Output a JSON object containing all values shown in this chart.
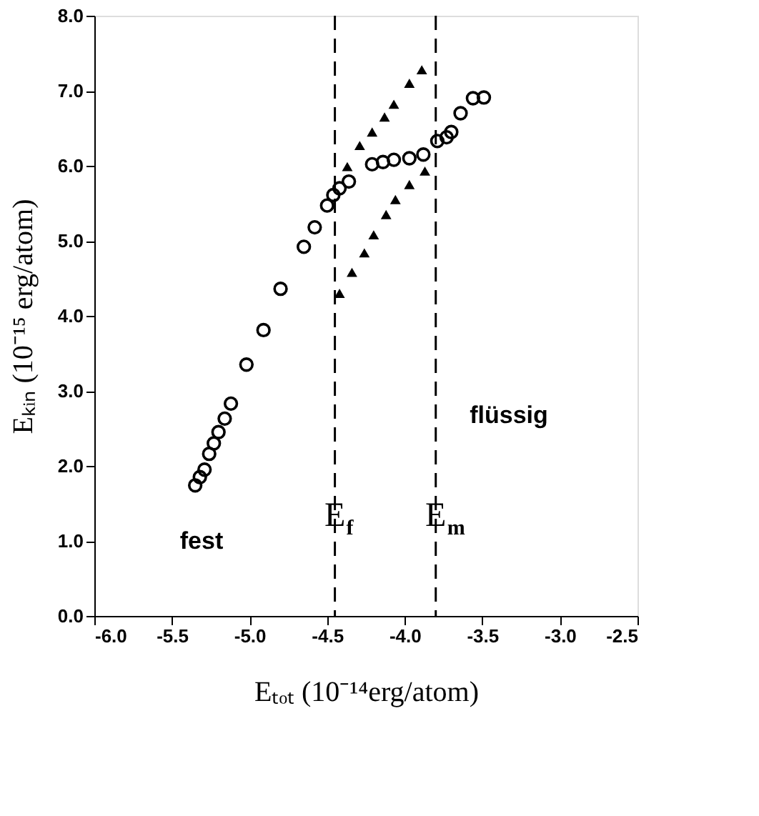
{
  "chart_data": {
    "type": "scatter",
    "xlabel": "Eₜₒₜ (10⁻¹⁴erg/atom)",
    "ylabel": "Eₖᵢₙ (10⁻¹⁵ erg/atom)",
    "xlim": [
      -6.0,
      -2.5
    ],
    "ylim": [
      0.0,
      8.0
    ],
    "xticks": [
      {
        "value": -6.0,
        "label": "-6.0"
      },
      {
        "value": -5.5,
        "label": "-5.5"
      },
      {
        "value": -5.0,
        "label": "-5.0"
      },
      {
        "value": -4.5,
        "label": "-4.5"
      },
      {
        "value": -4.0,
        "label": "-4.0"
      },
      {
        "value": -3.5,
        "label": "-3.5"
      },
      {
        "value": -3.0,
        "label": "-3.0"
      },
      {
        "value": -2.5,
        "label": "-2.5"
      }
    ],
    "yticks": [
      {
        "value": 0,
        "label": "0.0"
      },
      {
        "value": 1,
        "label": "1.0"
      },
      {
        "value": 2,
        "label": "2.0"
      },
      {
        "value": 3,
        "label": "3.0"
      },
      {
        "value": 4,
        "label": "4.0"
      },
      {
        "value": 5,
        "label": "5.0"
      },
      {
        "value": 6,
        "label": "6.0"
      },
      {
        "value": 7,
        "label": "7.0"
      },
      {
        "value": 8,
        "label": "8.0"
      }
    ],
    "grid": false,
    "series": [
      {
        "color": "#000000",
        "marker": "circle",
        "x": [
          -5.35,
          -5.32,
          -5.29,
          -5.26,
          -5.23,
          -5.2,
          -5.16,
          -5.12,
          -5.02,
          -4.91,
          -4.8,
          -4.65,
          -4.58,
          -4.5,
          -4.46,
          -4.42,
          -4.36,
          -4.21,
          -4.14,
          -4.07,
          -3.97,
          -3.88,
          -3.79,
          -3.73,
          -3.7,
          -3.64,
          -3.56,
          -3.49
        ],
        "values": [
          1.74,
          1.85,
          1.95,
          2.16,
          2.3,
          2.45,
          2.63,
          2.83,
          3.35,
          3.81,
          4.36,
          4.92,
          5.18,
          5.47,
          5.61,
          5.7,
          5.79,
          6.02,
          6.05,
          6.08,
          6.1,
          6.15,
          6.33,
          6.38,
          6.45,
          6.7,
          6.9,
          6.91
        ]
      },
      {
        "color": "#000000",
        "marker": "triangle",
        "x": [
          -4.42,
          -4.34,
          -4.26,
          -4.2,
          -4.12,
          -4.06,
          -3.97,
          -3.87,
          -4.37,
          -4.29,
          -4.21,
          -4.13,
          -4.07,
          -3.97,
          -3.89
        ],
        "values": [
          4.3,
          4.58,
          4.84,
          5.08,
          5.35,
          5.55,
          5.75,
          5.93,
          5.99,
          6.27,
          6.45,
          6.65,
          6.82,
          7.1,
          7.28
        ]
      }
    ],
    "ref_lines": [
      {
        "axis": "x",
        "value": -4.45,
        "label": "E$_{f}$",
        "line_style": "dashed",
        "color": "#000000"
      },
      {
        "axis": "x",
        "value": -3.8,
        "label": "E$_{m}$",
        "line_style": "dashed",
        "color": "#000000"
      }
    ],
    "annotations": [
      "fest",
      "flüssig"
    ]
  }
}
